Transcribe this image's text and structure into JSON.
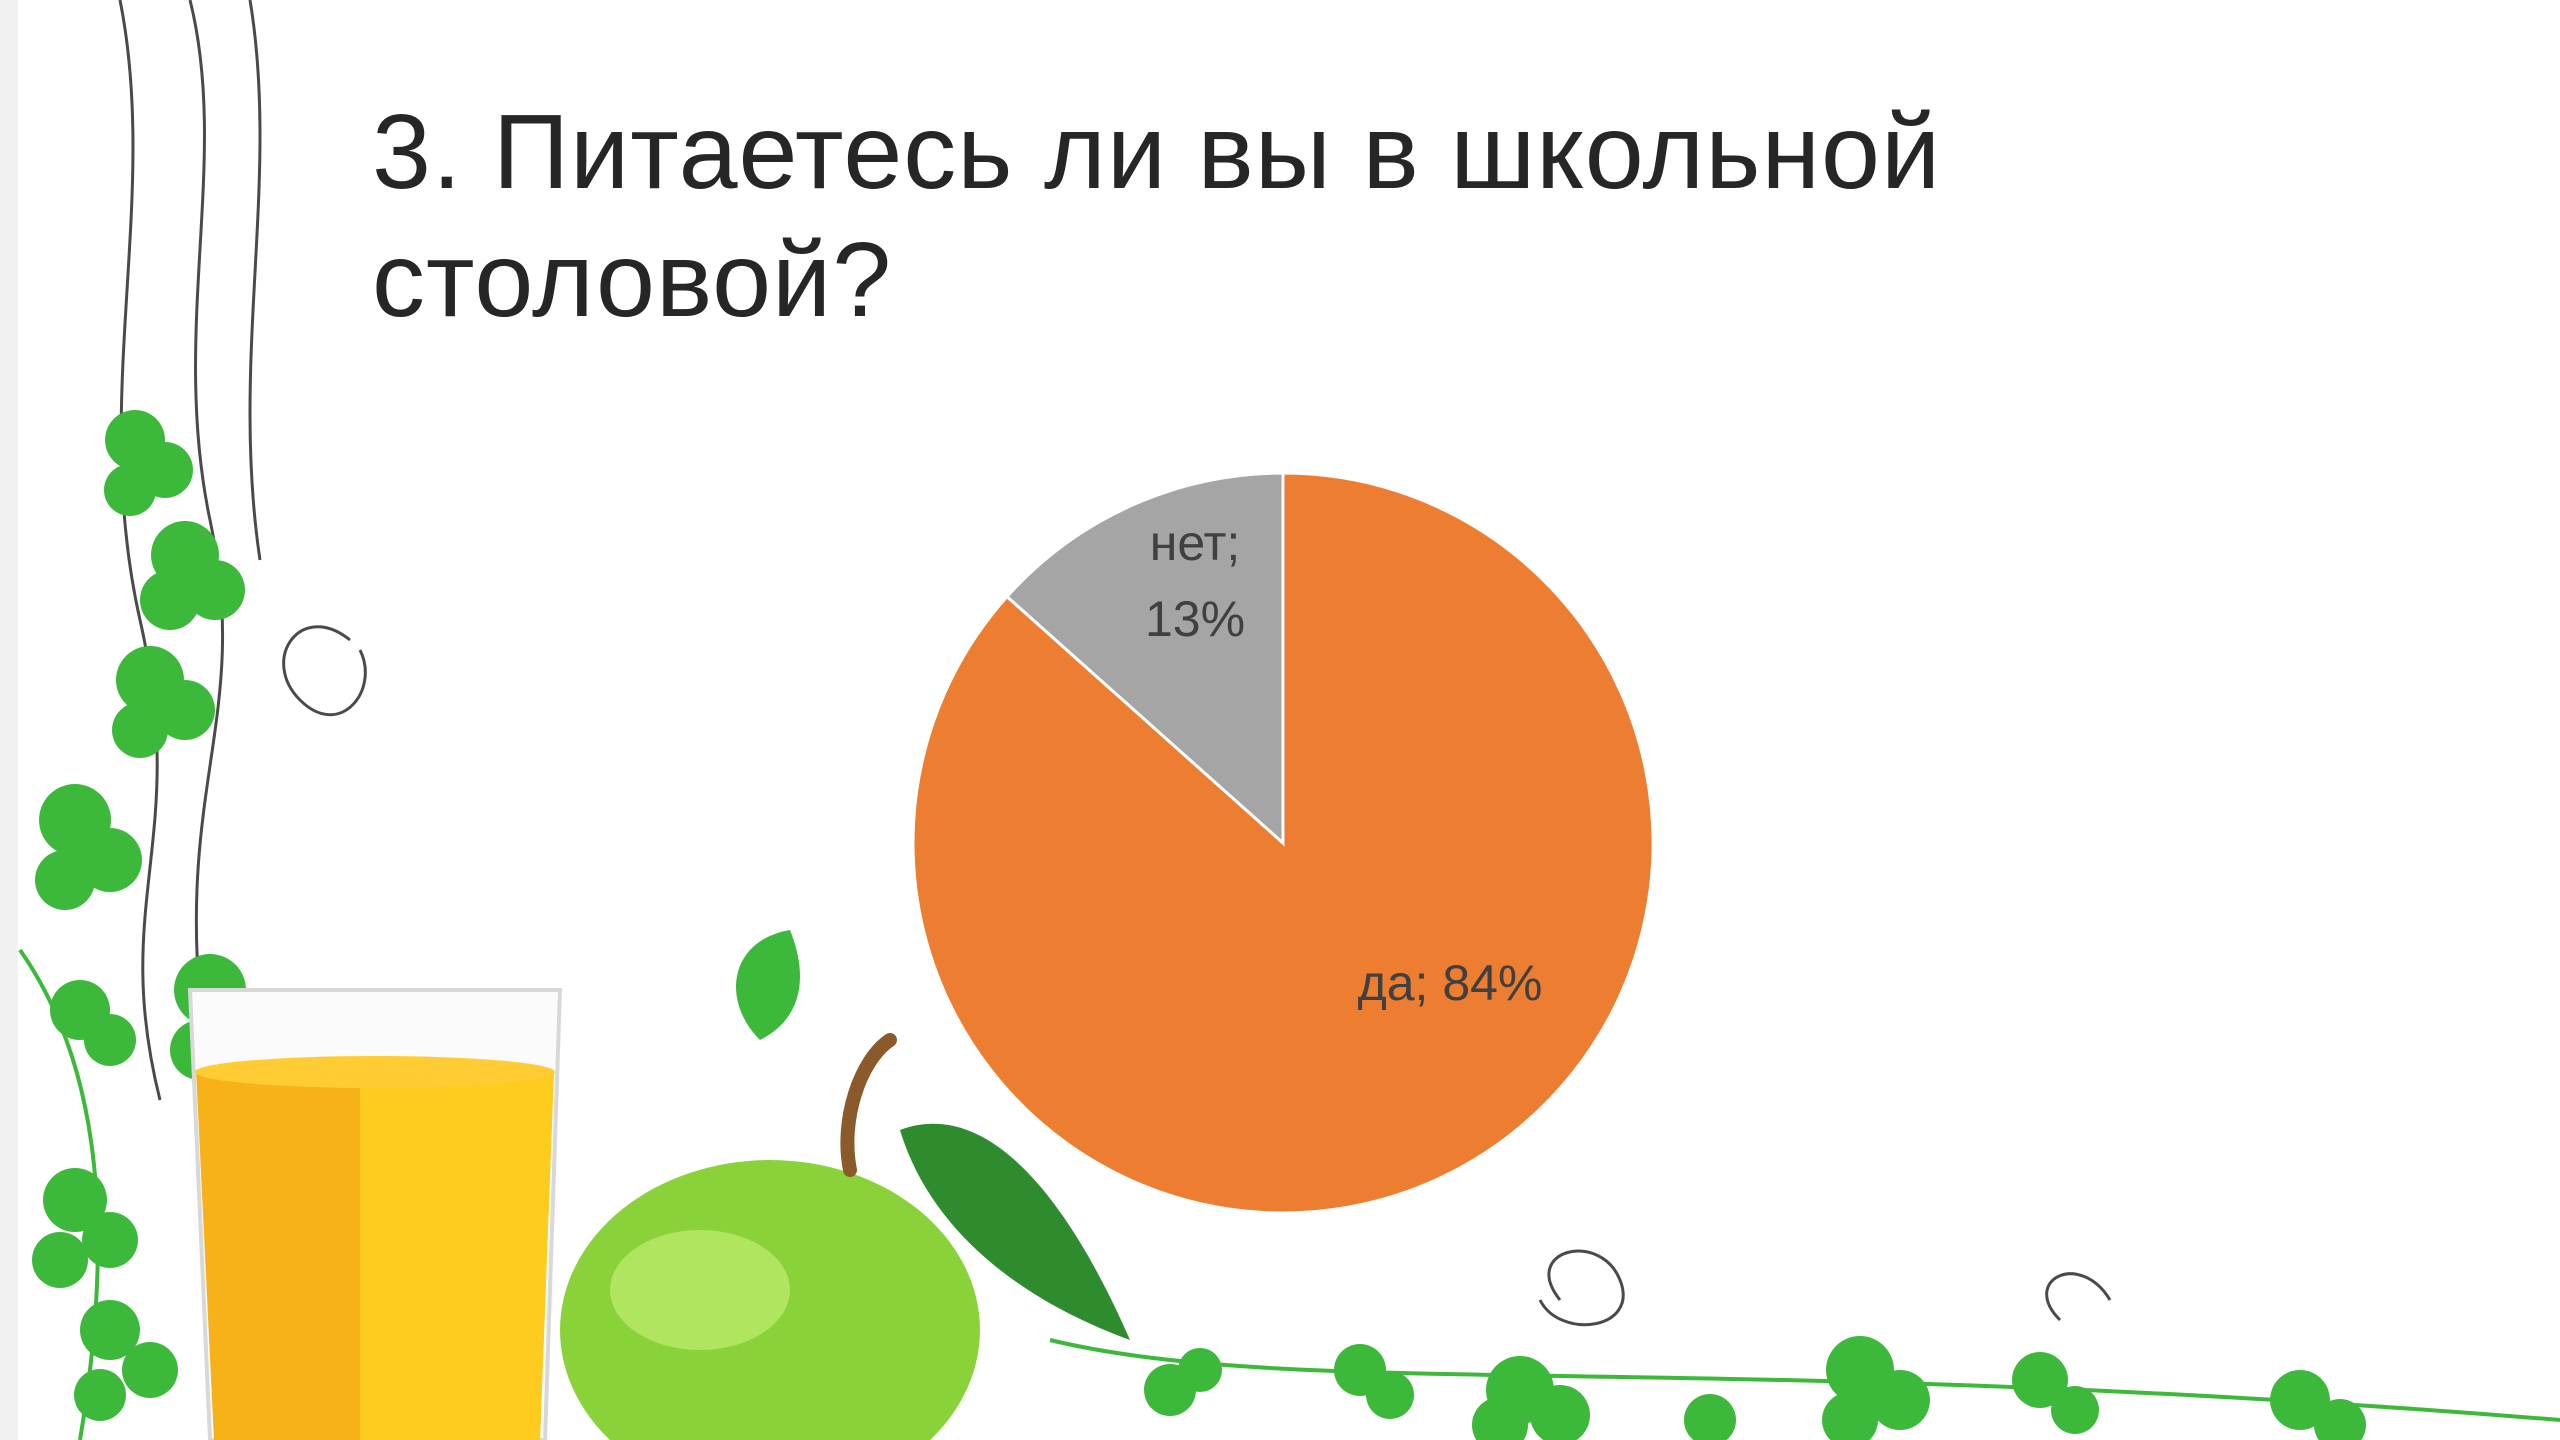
{
  "slide": {
    "title": "3. Питаетесь ли вы в школьной столовой?"
  },
  "colors": {
    "yes": "#ED7D31",
    "no": "#A5A5A5",
    "label_text": "#404040",
    "title_text": "#262626",
    "leaf_green": "#3cb93a"
  },
  "chart_data": {
    "type": "pie",
    "title": "",
    "start_angle_deg": 0,
    "direction": "clockwise",
    "slices": [
      {
        "category": "да",
        "value": 84,
        "label": "да; 84%",
        "color": "#ED7D31"
      },
      {
        "category": "нет",
        "value": 13,
        "label_lines": [
          "нет;",
          "13%"
        ],
        "color": "#A5A5A5"
      }
    ]
  }
}
